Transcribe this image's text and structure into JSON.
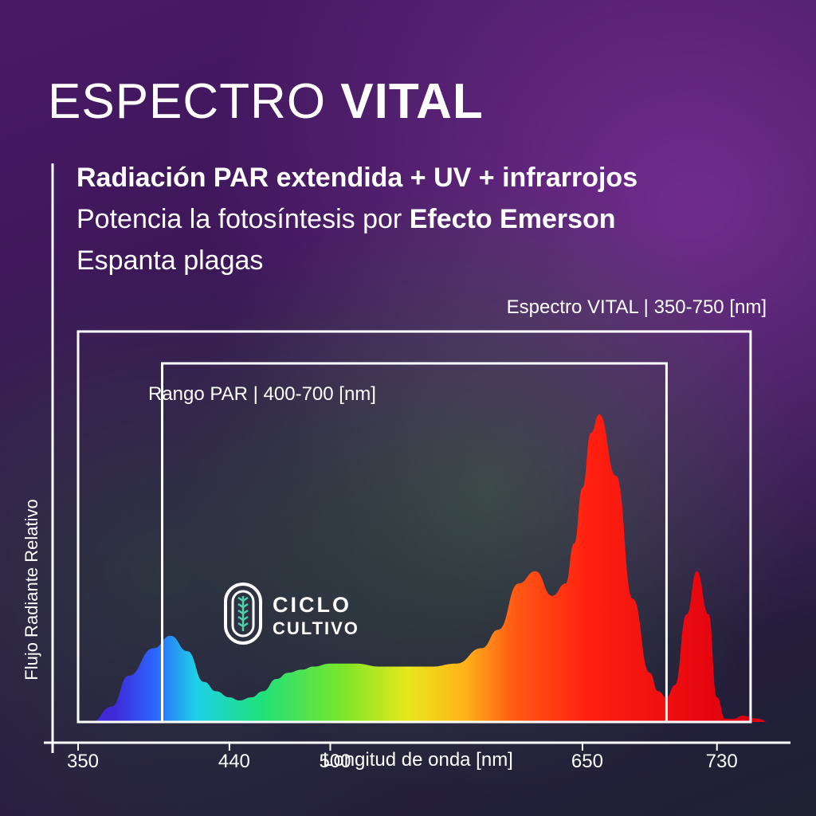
{
  "title": {
    "light": "ESPECTRO ",
    "bold": "VITAL"
  },
  "lines": {
    "line1": "Radiación PAR extendida + UV + infrarrojos",
    "line2_prefix": "Potencia la fotosíntesis por ",
    "line2_bold": "Efecto Emerson",
    "line3": "Espanta plagas"
  },
  "logo": {
    "word1": "CICLO",
    "word2": "CULTIVO",
    "icon": "leaf-capsule-icon"
  },
  "colors": {
    "text": "#ffffff",
    "axis": "#ffffff",
    "background": "#3b1657"
  },
  "chart_data": {
    "type": "area",
    "title": "",
    "xlabel": "Longitud de onda [nm]",
    "ylabel": "Flujo Radiante Relativo",
    "xlim": [
      350,
      760
    ],
    "ylim": [
      0,
      1
    ],
    "ticks": [
      350,
      440,
      500,
      650,
      730
    ],
    "ranges": [
      {
        "label": "Espectro VITAL | 350-750 [nm]",
        "from": 350,
        "to": 750
      },
      {
        "label": "Rango PAR | 400-700 [nm]",
        "from": 400,
        "to": 700
      }
    ],
    "series": [
      {
        "x": [
          358,
          370,
          380,
          395,
          405,
          415,
          425,
          432,
          440,
          446,
          453,
          460,
          468,
          475,
          483,
          490,
          500,
          508,
          515,
          530,
          545,
          560,
          575,
          590,
          600,
          612,
          622,
          632,
          640,
          645,
          650,
          655,
          660,
          670,
          680,
          690,
          695,
          700,
          705,
          712,
          718,
          725,
          730,
          735,
          740,
          745,
          755,
          760
        ],
        "y": [
          0.0,
          0.05,
          0.15,
          0.24,
          0.28,
          0.23,
          0.13,
          0.1,
          0.08,
          0.07,
          0.08,
          0.1,
          0.14,
          0.16,
          0.17,
          0.18,
          0.19,
          0.19,
          0.19,
          0.18,
          0.18,
          0.18,
          0.19,
          0.24,
          0.3,
          0.45,
          0.49,
          0.41,
          0.45,
          0.58,
          0.76,
          0.94,
          1.0,
          0.8,
          0.4,
          0.16,
          0.1,
          0.08,
          0.12,
          0.35,
          0.49,
          0.35,
          0.08,
          0.01,
          0.01,
          0.02,
          0.01,
          0.0
        ]
      }
    ]
  }
}
